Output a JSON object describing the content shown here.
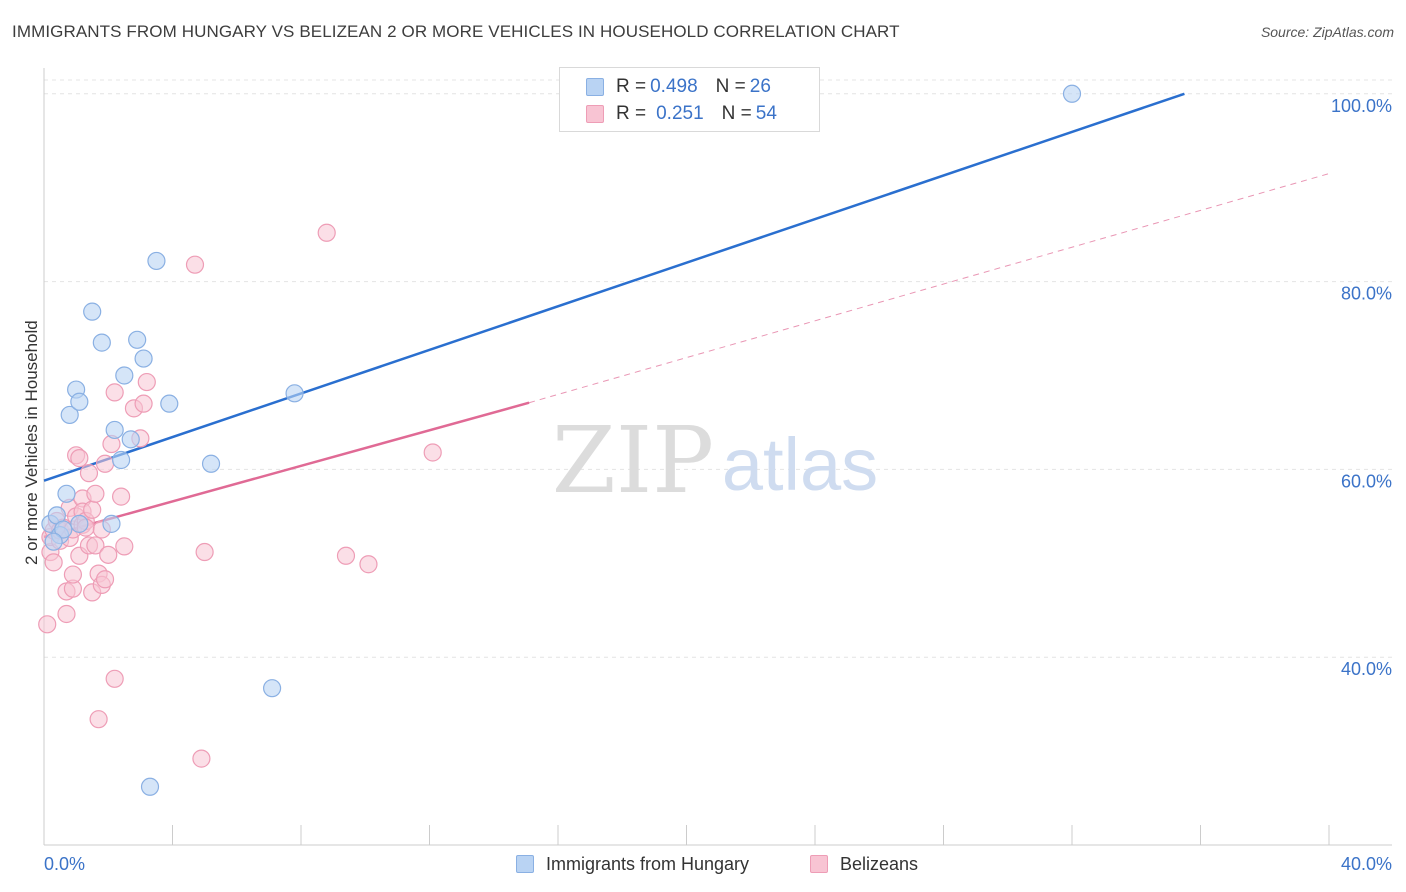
{
  "title": "IMMIGRANTS FROM HUNGARY VS BELIZEAN 2 OR MORE VEHICLES IN HOUSEHOLD CORRELATION CHART",
  "source": "Source: ZipAtlas.com",
  "watermark": {
    "zip": "ZIP",
    "atlas": "atlas"
  },
  "legend": {
    "row1": {
      "r_label": "R = ",
      "r_value": "0.498",
      "n_label": "N = ",
      "n_value": "26"
    },
    "row2": {
      "r_label": "R = ",
      "r_value": "0.251",
      "n_label": "N = ",
      "n_value": "54"
    }
  },
  "bottom_legend": {
    "series1": "Immigrants from Hungary",
    "series2": "Belizeans"
  },
  "colors": {
    "blue_fill": "#b9d3f3",
    "blue_stroke": "#8ab0e3",
    "blue_line": "#2a6fcf",
    "pink_fill": "#f8c4d3",
    "pink_stroke": "#ee9db6",
    "pink_line": "#e06a95",
    "axis_text": "#3b73c8",
    "grid": "#e4e4e4"
  },
  "chart_data": {
    "type": "scatter",
    "title": "IMMIGRANTS FROM HUNGARY VS BELIZEAN 2 OR MORE VEHICLES IN HOUSEHOLD CORRELATION CHART",
    "xlabel": "",
    "ylabel": "2 or more Vehicles in Household",
    "xlim": [
      0,
      40
    ],
    "ylim": [
      20,
      102
    ],
    "x_tick_labels": [
      "0.0%",
      "40.0%"
    ],
    "y_ticks": [
      40,
      60,
      80,
      100
    ],
    "y_tick_labels": [
      "40.0%",
      "60.0%",
      "80.0%",
      "100.0%"
    ],
    "grid": true,
    "legend_position": "top-center",
    "series": [
      {
        "name": "Immigrants from Hungary",
        "R": 0.498,
        "N": 26,
        "points": [
          [
            0.2,
            54.2
          ],
          [
            0.4,
            55.1
          ],
          [
            0.5,
            53.0
          ],
          [
            0.6,
            53.6
          ],
          [
            0.7,
            57.4
          ],
          [
            0.8,
            65.8
          ],
          [
            1.0,
            68.5
          ],
          [
            1.1,
            67.2
          ],
          [
            1.1,
            54.2
          ],
          [
            1.5,
            76.8
          ],
          [
            1.8,
            73.5
          ],
          [
            2.1,
            54.2
          ],
          [
            2.2,
            64.2
          ],
          [
            2.4,
            61.0
          ],
          [
            2.5,
            70.0
          ],
          [
            2.7,
            63.2
          ],
          [
            2.9,
            73.8
          ],
          [
            3.1,
            71.8
          ],
          [
            3.3,
            26.2
          ],
          [
            3.5,
            82.2
          ],
          [
            3.9,
            67.0
          ],
          [
            5.2,
            60.6
          ],
          [
            7.1,
            36.7
          ],
          [
            7.8,
            68.1
          ],
          [
            32.0,
            100.0
          ],
          [
            0.3,
            52.3
          ]
        ],
        "trend": {
          "x": [
            0,
            35.5
          ],
          "y": [
            58.8,
            100.0
          ],
          "style": "solid"
        }
      },
      {
        "name": "Belizeans",
        "R": 0.251,
        "N": 54,
        "points": [
          [
            0.1,
            43.5
          ],
          [
            0.2,
            51.2
          ],
          [
            0.2,
            52.8
          ],
          [
            0.3,
            53.5
          ],
          [
            0.3,
            50.1
          ],
          [
            0.4,
            54.5
          ],
          [
            0.5,
            52.4
          ],
          [
            0.5,
            53.5
          ],
          [
            0.6,
            53.8
          ],
          [
            0.7,
            47.0
          ],
          [
            0.7,
            44.6
          ],
          [
            0.8,
            55.9
          ],
          [
            0.8,
            52.7
          ],
          [
            0.9,
            53.6
          ],
          [
            0.9,
            47.3
          ],
          [
            0.9,
            48.8
          ],
          [
            1.0,
            61.5
          ],
          [
            1.0,
            55.0
          ],
          [
            1.1,
            61.2
          ],
          [
            1.1,
            50.8
          ],
          [
            1.2,
            56.9
          ],
          [
            1.2,
            54.1
          ],
          [
            1.2,
            55.5
          ],
          [
            1.3,
            54.5
          ],
          [
            1.3,
            53.8
          ],
          [
            1.4,
            59.6
          ],
          [
            1.4,
            51.9
          ],
          [
            1.5,
            46.9
          ],
          [
            1.5,
            55.7
          ],
          [
            1.6,
            57.4
          ],
          [
            1.6,
            51.9
          ],
          [
            1.7,
            33.4
          ],
          [
            1.7,
            48.9
          ],
          [
            1.8,
            47.7
          ],
          [
            1.8,
            53.6
          ],
          [
            1.9,
            60.6
          ],
          [
            1.9,
            48.3
          ],
          [
            2.0,
            50.9
          ],
          [
            2.1,
            62.7
          ],
          [
            2.2,
            37.7
          ],
          [
            2.2,
            68.2
          ],
          [
            2.4,
            57.1
          ],
          [
            2.5,
            51.8
          ],
          [
            2.8,
            66.5
          ],
          [
            3.0,
            63.3
          ],
          [
            3.1,
            67.0
          ],
          [
            3.2,
            69.3
          ],
          [
            4.7,
            81.8
          ],
          [
            4.9,
            29.2
          ],
          [
            5.0,
            51.2
          ],
          [
            8.8,
            85.2
          ],
          [
            9.4,
            50.8
          ],
          [
            10.1,
            49.9
          ],
          [
            12.1,
            61.8
          ]
        ],
        "trend": {
          "x": [
            0,
            15.1
          ],
          "y": [
            52.8,
            67.1
          ],
          "style": "solid",
          "extension": {
            "x": [
              15.1,
              40
            ],
            "y": [
              67.1,
              91.5
            ],
            "style": "dashed"
          }
        }
      }
    ]
  }
}
